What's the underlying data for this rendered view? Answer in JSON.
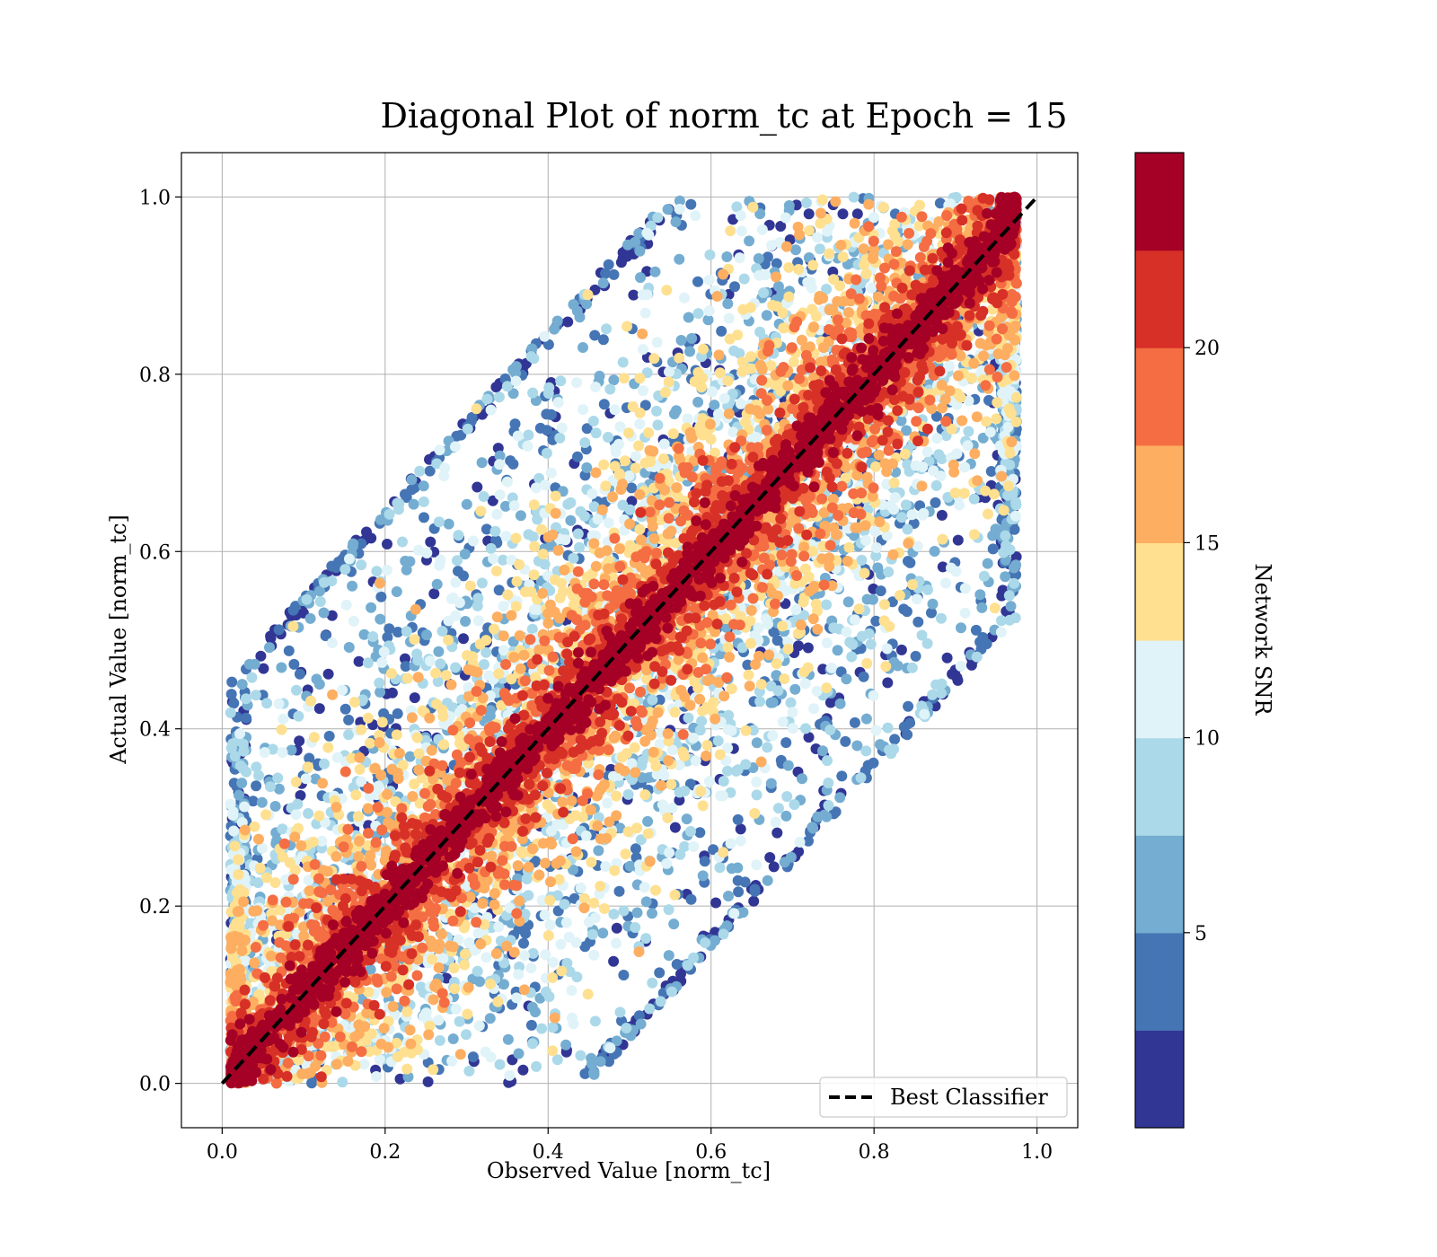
{
  "chart_data": {
    "type": "scatter",
    "title": "Diagonal Plot of norm_tc at Epoch = 15",
    "xlabel": "Observed Value [norm_tc]",
    "ylabel": "Actual Value [norm_tc]",
    "xlim": [
      -0.05,
      1.05
    ],
    "ylim": [
      -0.05,
      1.05
    ],
    "x_ticks": [
      "0.0",
      "0.2",
      "0.4",
      "0.6",
      "0.8",
      "1.0"
    ],
    "y_ticks": [
      "0.0",
      "0.2",
      "0.4",
      "0.6",
      "0.8",
      "1.0"
    ],
    "grid": true,
    "reference_line": {
      "label": "Best Classifier",
      "x": [
        0.0,
        1.0
      ],
      "y": [
        0.0,
        1.0
      ],
      "style": "dashed",
      "color": "#000000"
    },
    "legend": {
      "location": "lower-right",
      "entries": [
        "Best Classifier"
      ]
    },
    "point_density_description": "tens of thousands of points; high-SNR points concentrated along the diagonal, low-SNR points scattered in the upper-left and lower-right regions",
    "colorbar": {
      "label": "Network SNR",
      "range": [
        0,
        25
      ],
      "ticks": [
        "5",
        "10",
        "15",
        "20"
      ],
      "colors": [
        "#313695",
        "#4575b4",
        "#74add1",
        "#abd9e9",
        "#e0f3f8",
        "#fee090",
        "#fdae61",
        "#f46d43",
        "#d73027",
        "#a50026"
      ]
    }
  }
}
